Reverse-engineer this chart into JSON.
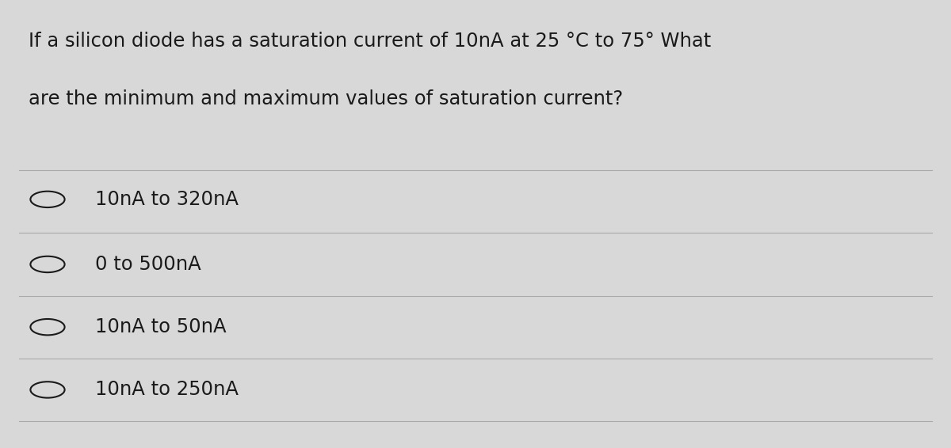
{
  "background_color": "#d8d8d8",
  "question_line1": "If a silicon diode has a saturation current of 10nA at 25 °C to 75° What",
  "question_line2": "are the minimum and maximum values of saturation current?",
  "options": [
    "10nA to 320nA",
    "0 to 500nA",
    "10nA to 50nA",
    "10nA to 250nA"
  ],
  "text_color": "#1a1a1a",
  "line_color": "#aaaaaa",
  "circle_color": "#1a1a1a",
  "question_fontsize": 17.5,
  "option_fontsize": 17.5,
  "fig_width": 12.0,
  "fig_height": 5.66
}
